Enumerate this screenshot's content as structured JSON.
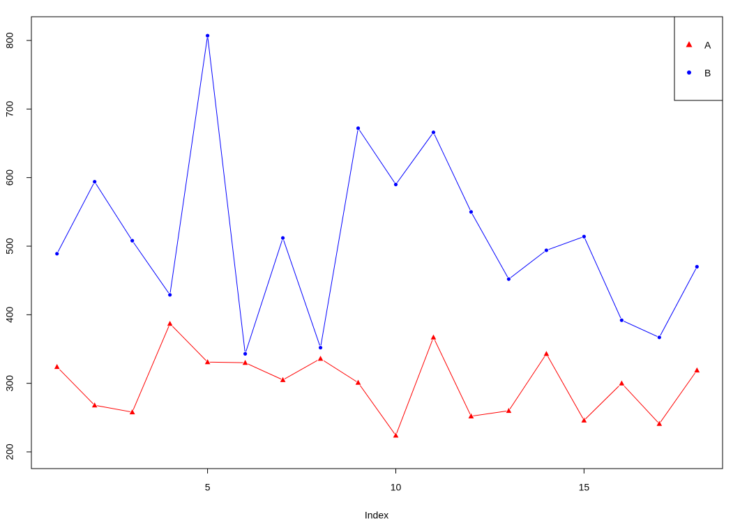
{
  "chart_data": {
    "type": "line",
    "x": [
      1,
      2,
      3,
      4,
      5,
      6,
      7,
      8,
      9,
      10,
      11,
      12,
      13,
      14,
      15,
      16,
      17,
      18
    ],
    "series": [
      {
        "name": "A",
        "color": "#ff0000",
        "marker": "triangle",
        "values": [
          324,
          268,
          258,
          387,
          331,
          330,
          305,
          336,
          301,
          224,
          367,
          252,
          260,
          343,
          246,
          300,
          241,
          319
        ]
      },
      {
        "name": "B",
        "color": "#0000ff",
        "marker": "circle",
        "values": [
          489,
          594,
          508,
          429,
          807,
          343,
          512,
          352,
          672,
          590,
          666,
          550,
          452,
          494,
          514,
          392,
          367,
          470
        ]
      }
    ],
    "xlabel": "Index",
    "xlim": [
      0.32,
      18.68
    ],
    "xticks": [
      5,
      10,
      15
    ],
    "ylim": [
      175.6,
      834.6
    ],
    "yticks": [
      200,
      300,
      400,
      500,
      600,
      700,
      800
    ],
    "legend": "topright"
  }
}
